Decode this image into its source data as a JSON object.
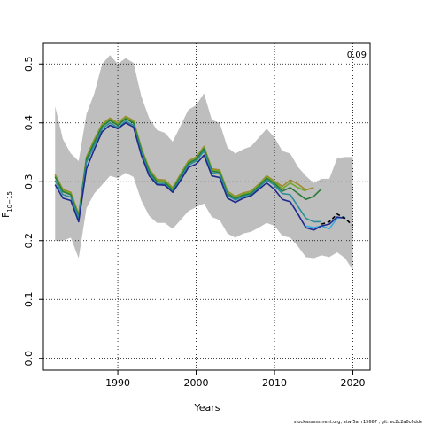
{
  "chart_data": {
    "type": "line",
    "xlabel": "Years",
    "ylabel": "F",
    "ylabel_sub": "10−15",
    "annotation": "0.09",
    "footer": "stockassessment.org, atwf5a, r15667 , git: ec2c2a0c6dde",
    "xlim": [
      1980.5,
      2022.2
    ],
    "ylim": [
      -0.02,
      0.535
    ],
    "x_ticks": [
      1990,
      2000,
      2010,
      2020
    ],
    "y_ticks": [
      0.0,
      0.1,
      0.2,
      0.3,
      0.4,
      0.5
    ],
    "y_tick_labels": [
      "0.0",
      "0.1",
      "0.2",
      "0.3",
      "0.4",
      "0.5"
    ],
    "grid": true,
    "band": {
      "x": [
        1982,
        1983,
        1984,
        1985,
        1986,
        1987,
        1988,
        1989,
        1990,
        1991,
        1992,
        1993,
        1994,
        1995,
        1996,
        1997,
        1998,
        1999,
        2000,
        2001,
        2002,
        2003,
        2004,
        2005,
        2006,
        2007,
        2008,
        2009,
        2010,
        2011,
        2012,
        2013,
        2014,
        2015,
        2016,
        2017,
        2018,
        2019,
        2020
      ],
      "upper": [
        0.428,
        0.372,
        0.348,
        0.335,
        0.415,
        0.45,
        0.5,
        0.515,
        0.5,
        0.51,
        0.502,
        0.445,
        0.408,
        0.388,
        0.383,
        0.368,
        0.395,
        0.422,
        0.43,
        0.45,
        0.405,
        0.4,
        0.358,
        0.348,
        0.355,
        0.36,
        0.375,
        0.39,
        0.375,
        0.352,
        0.348,
        0.325,
        0.31,
        0.298,
        0.305,
        0.305,
        0.34,
        0.342,
        0.342
      ],
      "lower": [
        0.2,
        0.2,
        0.205,
        0.17,
        0.255,
        0.28,
        0.295,
        0.31,
        0.306,
        0.315,
        0.308,
        0.268,
        0.242,
        0.23,
        0.23,
        0.22,
        0.235,
        0.25,
        0.257,
        0.263,
        0.24,
        0.235,
        0.212,
        0.205,
        0.212,
        0.215,
        0.222,
        0.23,
        0.225,
        0.208,
        0.205,
        0.19,
        0.172,
        0.17,
        0.175,
        0.172,
        0.18,
        0.17,
        0.15
      ]
    },
    "series": [
      {
        "color": "#a08a2e",
        "x": [
          1982,
          1983,
          1984,
          1985,
          1986,
          1987,
          1988,
          1989,
          1990,
          1991,
          1992,
          1993,
          1994,
          1995,
          1996,
          1997,
          1998,
          1999,
          2000,
          2001,
          2002,
          2003,
          2004,
          2005,
          2006,
          2007,
          2008,
          2009,
          2010,
          2011,
          2012,
          2013,
          2014,
          2015
        ],
        "values": [
          0.312,
          0.287,
          0.282,
          0.245,
          0.342,
          0.372,
          0.398,
          0.408,
          0.4,
          0.411,
          0.404,
          0.358,
          0.322,
          0.304,
          0.303,
          0.29,
          0.313,
          0.335,
          0.342,
          0.36,
          0.322,
          0.32,
          0.284,
          0.275,
          0.281,
          0.284,
          0.296,
          0.31,
          0.301,
          0.292,
          0.303,
          0.296,
          0.286,
          0.29
        ]
      },
      {
        "color": "#6fa82c",
        "x": [
          1982,
          1983,
          1984,
          1985,
          1986,
          1987,
          1988,
          1989,
          1990,
          1991,
          1992,
          1993,
          1994,
          1995,
          1996,
          1997,
          1998,
          1999,
          2000,
          2001,
          2002,
          2003,
          2004,
          2005,
          2006,
          2007,
          2008,
          2009,
          2010,
          2011,
          2012,
          2013,
          2014
        ],
        "values": [
          0.31,
          0.285,
          0.28,
          0.243,
          0.34,
          0.37,
          0.396,
          0.406,
          0.398,
          0.409,
          0.402,
          0.356,
          0.32,
          0.302,
          0.301,
          0.288,
          0.311,
          0.333,
          0.34,
          0.358,
          0.32,
          0.318,
          0.282,
          0.273,
          0.279,
          0.282,
          0.294,
          0.308,
          0.299,
          0.288,
          0.298,
          0.29,
          0.284
        ]
      },
      {
        "color": "#2a7a3a",
        "x": [
          1982,
          1983,
          1984,
          1985,
          1986,
          1987,
          1988,
          1989,
          1990,
          1991,
          1992,
          1993,
          1994,
          1995,
          1996,
          1997,
          1998,
          1999,
          2000,
          2001,
          2002,
          2003,
          2004,
          2005,
          2006,
          2007,
          2008,
          2009,
          2010,
          2011,
          2012,
          2013,
          2014,
          2015,
          2016
        ],
        "values": [
          0.308,
          0.283,
          0.278,
          0.241,
          0.338,
          0.367,
          0.394,
          0.404,
          0.396,
          0.407,
          0.4,
          0.354,
          0.318,
          0.3,
          0.299,
          0.286,
          0.309,
          0.331,
          0.338,
          0.356,
          0.318,
          0.316,
          0.28,
          0.271,
          0.277,
          0.28,
          0.292,
          0.306,
          0.297,
          0.284,
          0.29,
          0.28,
          0.27,
          0.275,
          0.288
        ]
      },
      {
        "color": "#2a8f9a",
        "x": [
          1982,
          1983,
          1984,
          1985,
          1986,
          1987,
          1988,
          1989,
          1990,
          1991,
          1992,
          1993,
          1994,
          1995,
          1996,
          1997,
          1998,
          1999,
          2000,
          2001,
          2002,
          2003,
          2004,
          2005,
          2006,
          2007,
          2008,
          2009,
          2010,
          2011,
          2012,
          2013,
          2014,
          2015,
          2016
        ],
        "values": [
          0.302,
          0.278,
          0.274,
          0.238,
          0.333,
          0.362,
          0.39,
          0.4,
          0.392,
          0.403,
          0.396,
          0.35,
          0.314,
          0.297,
          0.296,
          0.283,
          0.306,
          0.328,
          0.335,
          0.352,
          0.315,
          0.313,
          0.277,
          0.269,
          0.275,
          0.278,
          0.29,
          0.303,
          0.294,
          0.28,
          0.278,
          0.258,
          0.238,
          0.232,
          0.232
        ]
      },
      {
        "color": "#3fa9e0",
        "x": [
          2014,
          2015,
          2016,
          2017,
          2018,
          2019
        ],
        "values": [
          0.225,
          0.222,
          0.225,
          0.22,
          0.238,
          0.24
        ]
      },
      {
        "color": "#1f2a8c",
        "x": [
          1982,
          1983,
          1984,
          1985,
          1986,
          1987,
          1988,
          1989,
          1990,
          1991,
          1992,
          1993,
          1994,
          1995,
          1996,
          1997,
          1998,
          1999,
          2000,
          2001,
          2002,
          2003,
          2004,
          2005,
          2006,
          2007,
          2008,
          2009,
          2010,
          2011,
          2012,
          2013,
          2014,
          2015,
          2016,
          2017,
          2018,
          2019
        ],
        "values": [
          0.295,
          0.272,
          0.268,
          0.232,
          0.322,
          0.355,
          0.385,
          0.396,
          0.39,
          0.4,
          0.393,
          0.345,
          0.31,
          0.295,
          0.294,
          0.282,
          0.302,
          0.324,
          0.33,
          0.345,
          0.31,
          0.307,
          0.272,
          0.265,
          0.272,
          0.276,
          0.287,
          0.298,
          0.287,
          0.27,
          0.266,
          0.245,
          0.222,
          0.218,
          0.225,
          0.228,
          0.24,
          0.238
        ]
      },
      {
        "color": "#000000",
        "dash": true,
        "x": [
          2016,
          2017,
          2018,
          2019,
          2020
        ],
        "values": [
          0.228,
          0.232,
          0.245,
          0.238,
          0.225
        ]
      }
    ]
  }
}
